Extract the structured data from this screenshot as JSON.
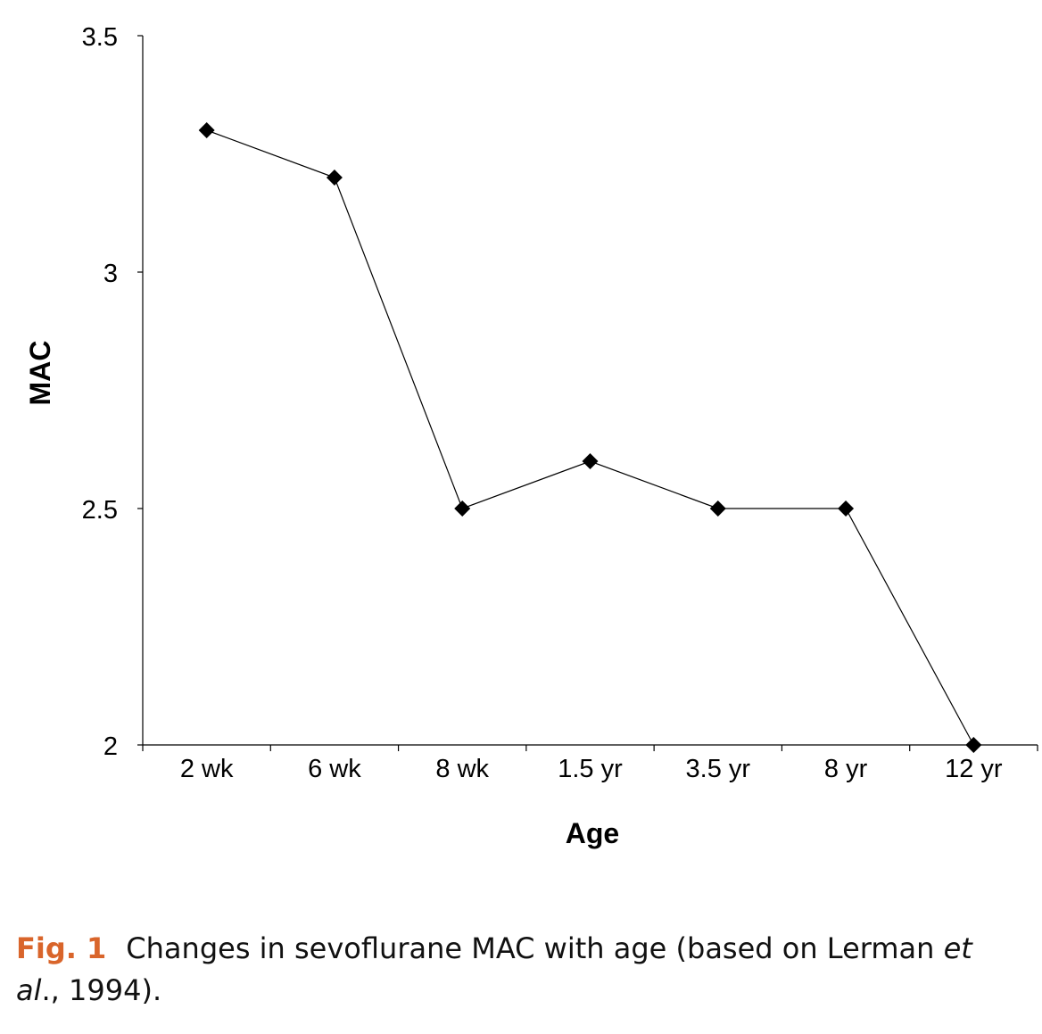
{
  "chart_data": {
    "type": "line",
    "categories": [
      "2 wk",
      "6 wk",
      "8 wk",
      "1.5 yr",
      "3.5 yr",
      "8 yr",
      "12 yr"
    ],
    "series": [
      {
        "values": [
          3.3,
          3.2,
          2.5,
          2.6,
          2.5,
          2.5,
          2.0
        ]
      }
    ],
    "xlabel": "Age",
    "ylabel": "MAC",
    "ylim": [
      2,
      3.5
    ],
    "yticks": [
      {
        "value": 2,
        "label": "2"
      },
      {
        "value": 2.5,
        "label": "2.5"
      },
      {
        "value": 3,
        "label": "3"
      },
      {
        "value": 3.5,
        "label": "3.5"
      }
    ],
    "grid": false,
    "legend": "none",
    "marker": "diamond",
    "line_color": "#000000",
    "marker_color": "#000000"
  },
  "caption": {
    "label": "Fig. 1",
    "label_color": "#d9652b",
    "text_before": "Changes in sevoflurane MAC with age (based on Lerman ",
    "text_italic_1": "et",
    "text_italic_2": "al",
    "text_after": "., 1994)."
  }
}
